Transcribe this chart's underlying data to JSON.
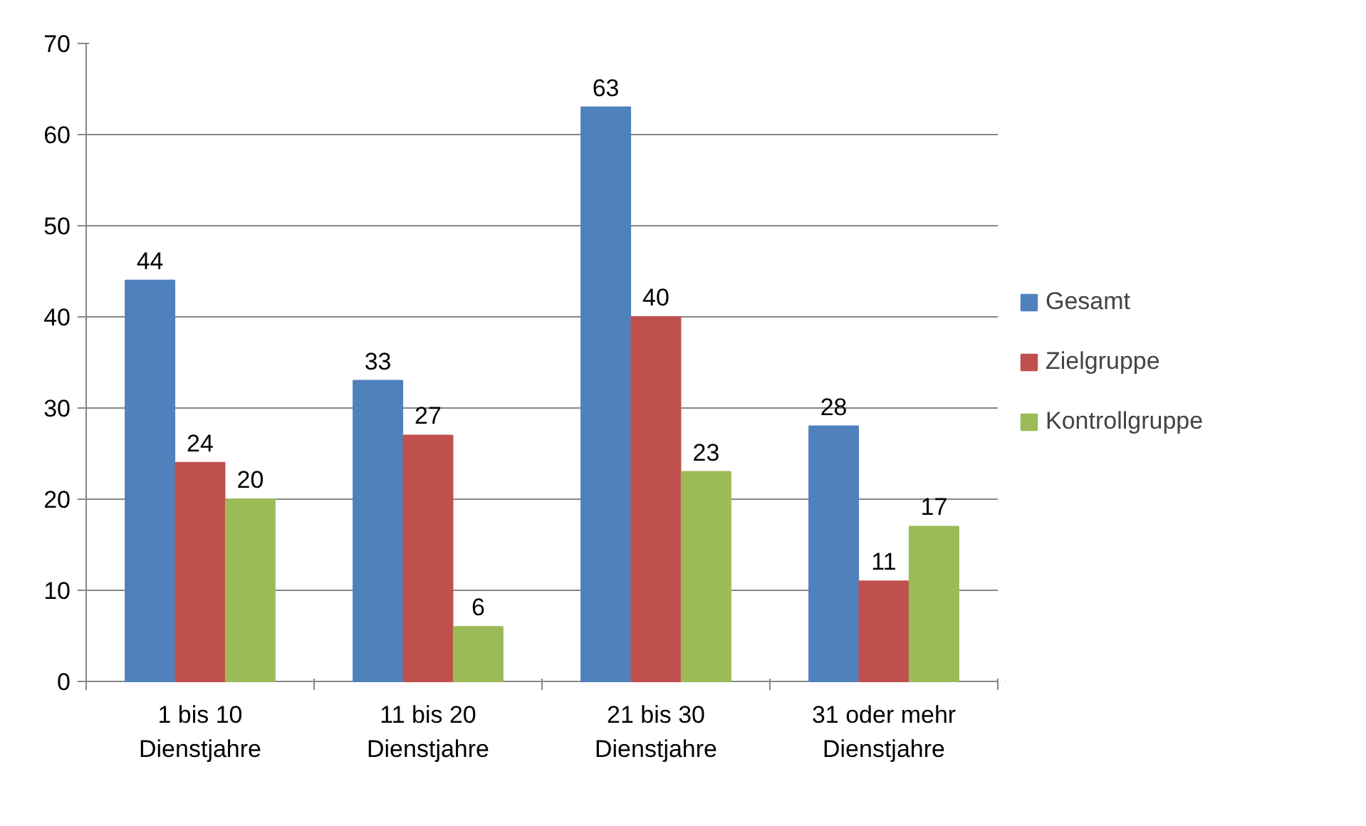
{
  "chart_data": {
    "type": "bar",
    "categories": [
      "1 bis 10 Dienstjahre",
      "11 bis 20 Dienstjahre",
      "21 bis 30 Dienstjahre",
      "31 oder mehr Dienstjahre"
    ],
    "series": [
      {
        "name": "Gesamt",
        "color": "#4f81bd",
        "values": [
          44,
          33,
          63,
          28
        ]
      },
      {
        "name": "Zielgruppe",
        "color": "#c0504d",
        "values": [
          24,
          27,
          40,
          11
        ]
      },
      {
        "name": "Kontrollgruppe",
        "color": "#9bbb59",
        "values": [
          20,
          6,
          23,
          17
        ]
      }
    ],
    "ylim": [
      0,
      70
    ],
    "yticks": [
      0,
      10,
      20,
      30,
      40,
      50,
      60,
      70
    ],
    "grid": "y",
    "legend": "right",
    "data_labels": true
  }
}
